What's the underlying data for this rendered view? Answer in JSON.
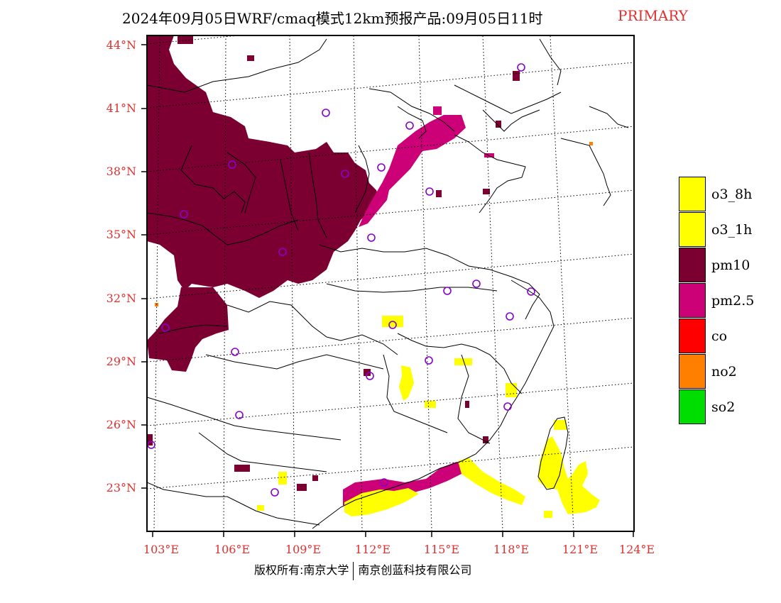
{
  "title": {
    "main": "2024年09月05日WRF/cmaq模式12km预报产品:09月05日11时",
    "tag": "PRIMARY"
  },
  "colors": {
    "title_tag": "#e03030",
    "axis_labels": "#e03030",
    "o3_8h": "#ffff00",
    "o3_1h": "#ffff00",
    "pm10": "#7b0031",
    "pm2_5": "#cc0077",
    "co": "#ff0000",
    "no2": "#ff8000",
    "so2": "#00dd00",
    "station_marker": "#8800cc"
  },
  "axes": {
    "lat_labels": [
      "44°N",
      "41°N",
      "38°N",
      "35°N",
      "32°N",
      "29°N",
      "26°N",
      "23°N"
    ],
    "lon_labels": [
      "103°E",
      "106°E",
      "109°E",
      "112°E",
      "115°E",
      "118°E",
      "121°E",
      "124°E"
    ]
  },
  "legend": [
    {
      "key": "o3_8h",
      "label": "o3_8h",
      "color": "#ffff00"
    },
    {
      "key": "o3_1h",
      "label": "o3_1h",
      "color": "#ffff00"
    },
    {
      "key": "pm10",
      "label": "pm10",
      "color": "#7b0031"
    },
    {
      "key": "pm2_5",
      "label": "pm2.5",
      "color": "#cc0077"
    },
    {
      "key": "co",
      "label": "co",
      "color": "#ff0000"
    },
    {
      "key": "no2",
      "label": "no2",
      "color": "#ff8000"
    },
    {
      "key": "so2",
      "label": "so2",
      "color": "#00dd00"
    }
  ],
  "footer": {
    "left": "版权所有:南京大学",
    "right": "南京创蓝科技有限公司"
  }
}
